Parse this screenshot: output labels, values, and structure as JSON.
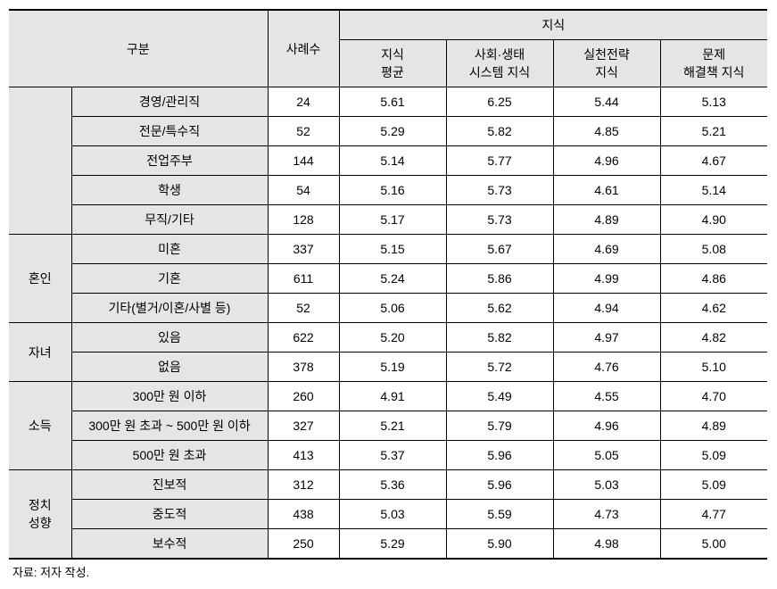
{
  "header": {
    "category_label": "구분",
    "n_label": "사례수",
    "group_label": "지식",
    "sub_headers": {
      "avg": "지식\n평균",
      "social": "사회·생태\n시스템 지식",
      "strategy": "실천전략\n지식",
      "solution": "문제\n해결책 지식"
    }
  },
  "groups": [
    {
      "name": "",
      "show_name": false,
      "rows": [
        {
          "label": "경영/관리직",
          "n": "24",
          "v1": "5.61",
          "v2": "6.25",
          "v3": "5.44",
          "v4": "5.13"
        },
        {
          "label": "전문/특수직",
          "n": "52",
          "v1": "5.29",
          "v2": "5.82",
          "v3": "4.85",
          "v4": "5.21"
        },
        {
          "label": "전업주부",
          "n": "144",
          "v1": "5.14",
          "v2": "5.77",
          "v3": "4.96",
          "v4": "4.67"
        },
        {
          "label": "학생",
          "n": "54",
          "v1": "5.16",
          "v2": "5.73",
          "v3": "4.61",
          "v4": "5.14"
        },
        {
          "label": "무직/기타",
          "n": "128",
          "v1": "5.17",
          "v2": "5.73",
          "v3": "4.89",
          "v4": "4.90"
        }
      ]
    },
    {
      "name": "혼인",
      "show_name": true,
      "rows": [
        {
          "label": "미혼",
          "n": "337",
          "v1": "5.15",
          "v2": "5.67",
          "v3": "4.69",
          "v4": "5.08"
        },
        {
          "label": "기혼",
          "n": "611",
          "v1": "5.24",
          "v2": "5.86",
          "v3": "4.99",
          "v4": "4.86"
        },
        {
          "label": "기타(별거/이혼/사별 등)",
          "n": "52",
          "v1": "5.06",
          "v2": "5.62",
          "v3": "4.94",
          "v4": "4.62"
        }
      ]
    },
    {
      "name": "자녀",
      "show_name": true,
      "rows": [
        {
          "label": "있음",
          "n": "622",
          "v1": "5.20",
          "v2": "5.82",
          "v3": "4.97",
          "v4": "4.82"
        },
        {
          "label": "없음",
          "n": "378",
          "v1": "5.19",
          "v2": "5.72",
          "v3": "4.76",
          "v4": "5.10"
        }
      ]
    },
    {
      "name": "소득",
      "show_name": true,
      "rows": [
        {
          "label": "300만 원 이하",
          "n": "260",
          "v1": "4.91",
          "v2": "5.49",
          "v3": "4.55",
          "v4": "4.70"
        },
        {
          "label": "300만 원 초과 ~ 500만 원 이하",
          "n": "327",
          "v1": "5.21",
          "v2": "5.79",
          "v3": "4.96",
          "v4": "4.89"
        },
        {
          "label": "500만 원 초과",
          "n": "413",
          "v1": "5.37",
          "v2": "5.96",
          "v3": "5.05",
          "v4": "5.09"
        }
      ]
    },
    {
      "name": "정치\n성향",
      "show_name": true,
      "rows": [
        {
          "label": "진보적",
          "n": "312",
          "v1": "5.36",
          "v2": "5.96",
          "v3": "5.03",
          "v4": "5.09"
        },
        {
          "label": "중도적",
          "n": "438",
          "v1": "5.03",
          "v2": "5.59",
          "v3": "4.73",
          "v4": "4.77"
        },
        {
          "label": "보수적",
          "n": "250",
          "v1": "5.29",
          "v2": "5.90",
          "v3": "4.98",
          "v4": "5.00"
        }
      ]
    }
  ],
  "source_note": "자료: 저자 작성."
}
